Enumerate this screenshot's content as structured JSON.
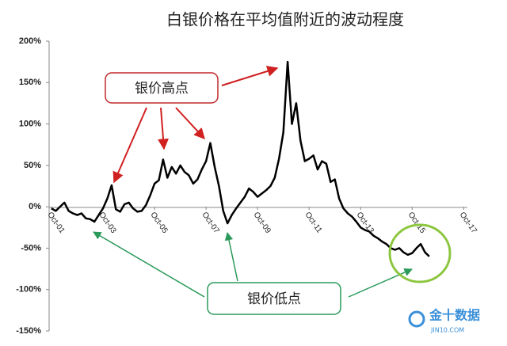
{
  "chart_data": {
    "type": "line",
    "title": "白银价格在平均值附近的波动程度",
    "categories": [
      "Oct-01",
      null,
      null,
      null,
      null,
      null,
      null,
      null,
      null,
      null,
      null,
      null,
      "Oct-03",
      null,
      null,
      null,
      null,
      null,
      null,
      null,
      null,
      null,
      null,
      null,
      "Oct-05",
      null,
      null,
      null,
      null,
      null,
      null,
      null,
      null,
      null,
      null,
      null,
      "Oct-07",
      null,
      null,
      null,
      null,
      null,
      null,
      null,
      null,
      null,
      null,
      null,
      "Oct-09",
      null,
      null,
      null,
      null,
      null,
      null,
      null,
      null,
      null,
      null,
      null,
      "Oct-11",
      null,
      null,
      null,
      null,
      null,
      null,
      null,
      null,
      null,
      null,
      null,
      "Oct-13",
      null,
      null,
      null,
      null,
      null,
      null,
      null,
      null,
      null,
      null,
      null,
      "Oct-15",
      null,
      null,
      null,
      null,
      null,
      null,
      null,
      null,
      null,
      null,
      null,
      "Oct-17"
    ],
    "values": [
      -2,
      -5,
      0,
      5,
      -5,
      -8,
      -10,
      -8,
      -14,
      -15,
      -18,
      -10,
      -2,
      10,
      26,
      -3,
      -6,
      3,
      5,
      -2,
      -6,
      -5,
      2,
      14,
      28,
      32,
      57,
      35,
      48,
      40,
      50,
      42,
      38,
      28,
      33,
      45,
      55,
      77,
      48,
      25,
      -5,
      -20,
      -10,
      -2,
      5,
      12,
      22,
      18,
      12,
      16,
      20,
      25,
      35,
      58,
      90,
      175,
      100,
      125,
      80,
      55,
      58,
      62,
      45,
      55,
      52,
      30,
      33,
      10,
      -2,
      -8,
      -12,
      -18,
      -25,
      -28,
      -30,
      -35,
      -38,
      -42,
      -45,
      -50,
      -52,
      -50,
      -55,
      -58,
      -56,
      -50,
      -45,
      -55,
      -60,
      null,
      null,
      null,
      null,
      null,
      null,
      null,
      null
    ],
    "color": "#000000",
    "ylim": [
      -150,
      200
    ],
    "yticks": [
      {
        "value": -150,
        "label": "-150%"
      },
      {
        "value": -100,
        "label": "-100%"
      },
      {
        "value": -50,
        "label": "-50%"
      },
      {
        "value": 0,
        "label": "0%"
      },
      {
        "value": 50,
        "label": "50%"
      },
      {
        "value": 100,
        "label": "100%"
      },
      {
        "value": 150,
        "label": "150%"
      },
      {
        "value": 200,
        "label": "200%"
      }
    ],
    "grid": false,
    "annotations": [
      "银价高点",
      "银价低点"
    ]
  },
  "watermark": [
    "金十数据",
    "JIN10.COM"
  ]
}
